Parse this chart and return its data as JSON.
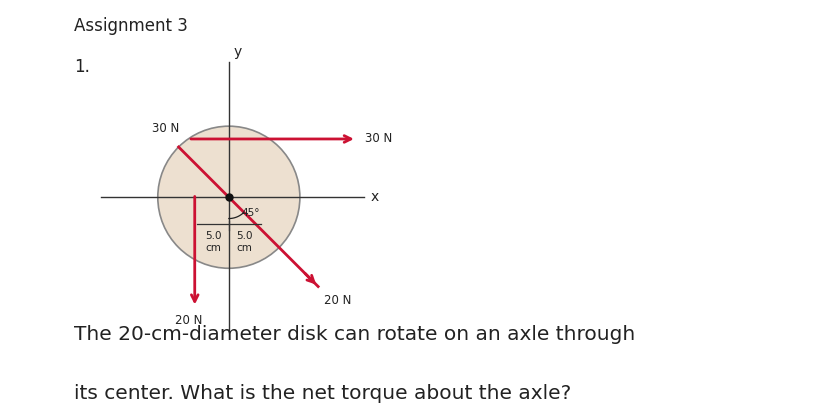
{
  "title": "Assignment 3",
  "problem_number": "1.",
  "description_line1": "The 20-cm-diameter disk can rotate on an axle through",
  "description_line2": "its center. What is the net torque about the axle?",
  "disk_fill_color": "#ede0d0",
  "disk_edge_color": "#888888",
  "arrow_color": "#cc1133",
  "axis_color": "#333333",
  "text_color": "#222222",
  "background_color": "#ffffff",
  "angle_label": "45°",
  "force_30N": "30 N",
  "force_20N": "20 N",
  "axis_label_x": "x",
  "axis_label_y": "y",
  "dim_left": "5.0\ncm",
  "dim_right": "5.0\ncm"
}
